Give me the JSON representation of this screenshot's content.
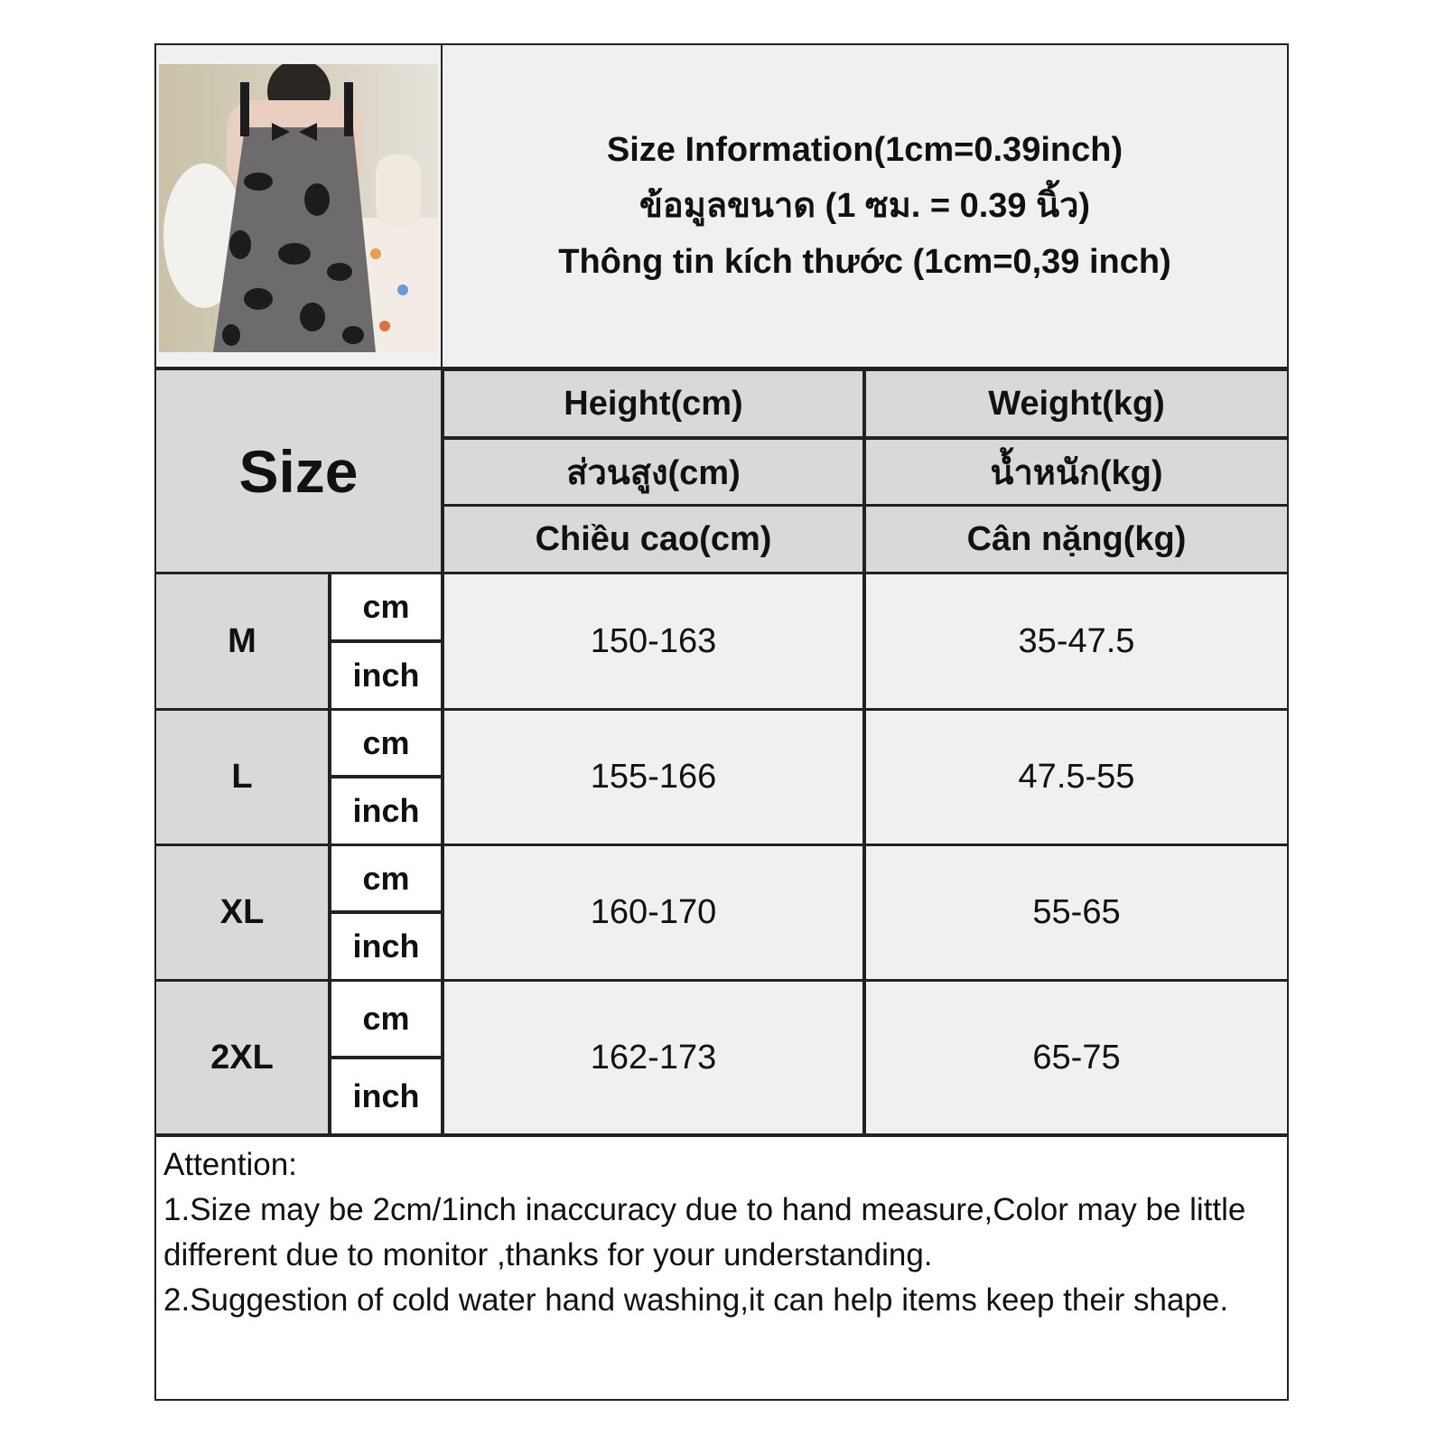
{
  "header": {
    "lines": [
      "Size Information(1cm=0.39inch)",
      "ข้อมูลขนาด (1 ซม. = 0.39 นิ้ว)",
      "Thông tin kích thước (1cm=0,39 inch)"
    ],
    "image": "product-photo-woman-in-cow-print-slip-dress"
  },
  "columns": {
    "size_label": "Size",
    "height": [
      "Height(cm)",
      "ส่วนสูง(cm)",
      "Chiều cao(cm)"
    ],
    "weight": [
      "Weight(kg)",
      "น้ำหนัก(kg)",
      "Cân nặng(kg)"
    ]
  },
  "units": {
    "cm": "cm",
    "inch": "inch"
  },
  "rows": [
    {
      "size": "M",
      "height": "150-163",
      "weight": "35-47.5"
    },
    {
      "size": "L",
      "height": "155-166",
      "weight": "47.5-55"
    },
    {
      "size": "XL",
      "height": "160-170",
      "weight": "55-65"
    },
    {
      "size": "2XL",
      "height": "162-173",
      "weight": "65-75"
    }
  ],
  "notes": {
    "title": "Attention:",
    "lines": [
      "1.Size may be 2cm/1inch inaccuracy due to hand measure,Color may be little different due to monitor ,thanks for your understanding.",
      "2.Suggestion of cold water hand washing,it can help items keep their shape."
    ]
  }
}
